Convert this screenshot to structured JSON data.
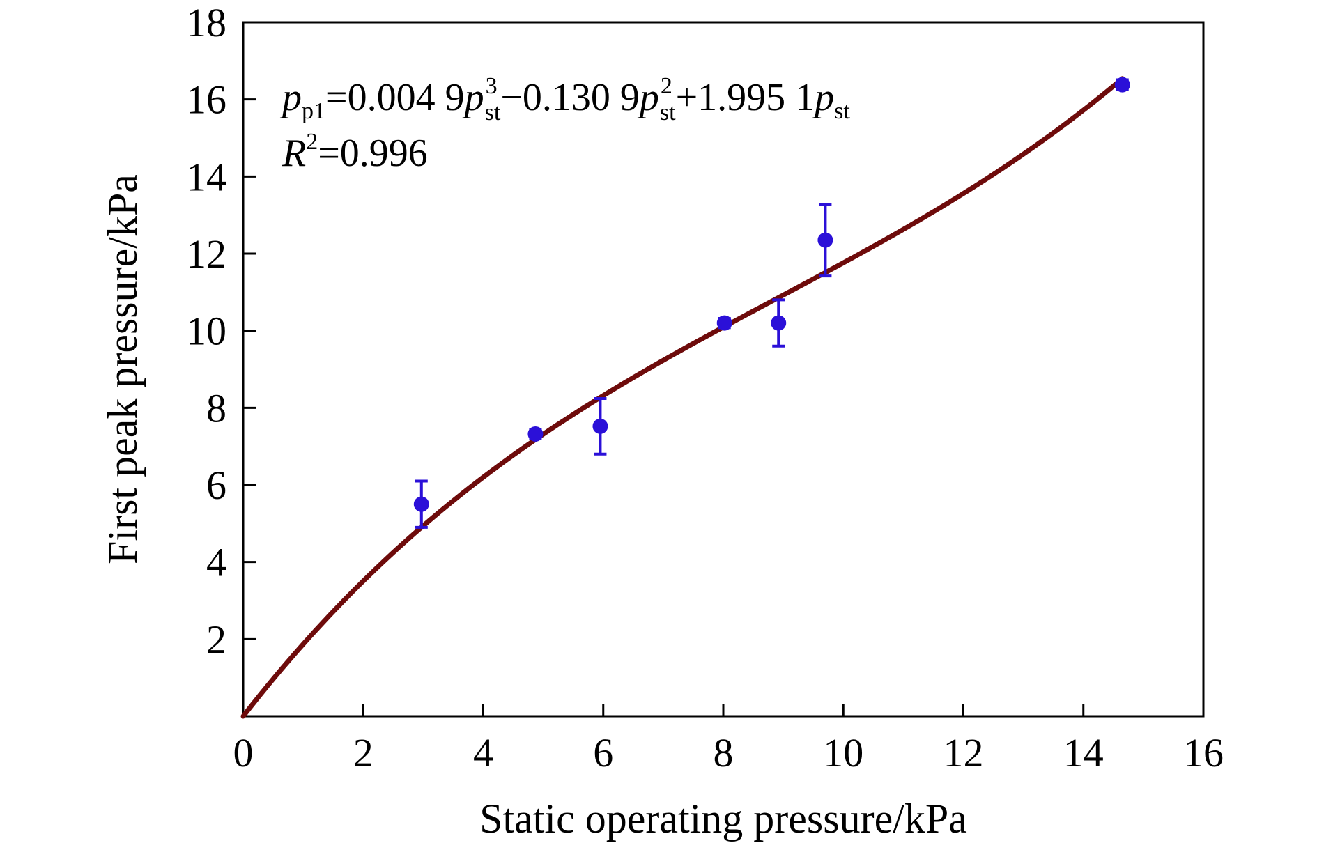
{
  "chart_data": {
    "type": "scatter",
    "xlabel": "Static operating pressure/kPa",
    "ylabel": "First peak pressure/kPa",
    "xlim": [
      0,
      16
    ],
    "ylim": [
      0,
      18
    ],
    "x_ticks": [
      0,
      2,
      4,
      6,
      8,
      10,
      12,
      14,
      16
    ],
    "y_ticks": [
      2,
      4,
      6,
      8,
      10,
      12,
      14,
      16,
      18
    ],
    "grid": false,
    "legend": "none",
    "series": [
      {
        "type": "scatter",
        "color": "#2b10d8",
        "points": [
          {
            "x": 2.97,
            "y": 5.5,
            "err_low": 0.6,
            "err_high": 0.6
          },
          {
            "x": 4.87,
            "y": 7.32,
            "err_low": 0.12,
            "err_high": 0.12
          },
          {
            "x": 5.95,
            "y": 7.52,
            "err_low": 0.72,
            "err_high": 0.72
          },
          {
            "x": 8.02,
            "y": 10.2,
            "err_low": 0.12,
            "err_high": 0.12
          },
          {
            "x": 8.92,
            "y": 10.2,
            "err_low": 0.6,
            "err_high": 0.6
          },
          {
            "x": 9.7,
            "y": 12.35,
            "err_low": 0.93,
            "err_high": 0.93
          },
          {
            "x": 14.65,
            "y": 16.38,
            "err_low": 0.13,
            "err_high": 0.13
          }
        ]
      },
      {
        "type": "line",
        "color": "#6e0b0b",
        "fit": {
          "a3": 0.0049,
          "a2": -0.1309,
          "a1": 1.9951,
          "x_range": [
            0,
            14.65
          ]
        }
      }
    ],
    "annotation": {
      "eq_p": "p",
      "eq_p1": "p1",
      "eq_eq1": "=0.004 9",
      "eq_var1": "p",
      "eq_sub1": "st",
      "eq_sup1": "3",
      "eq_mid1": "−0.130 9",
      "eq_var2": "p",
      "eq_sub2": "st",
      "eq_sup2": "2",
      "eq_mid2": "+1.995 1",
      "eq_var3": "p",
      "eq_sub3": "st",
      "r2_r": "R",
      "r2_sup": "2",
      "r2_val": "=0.996"
    }
  }
}
